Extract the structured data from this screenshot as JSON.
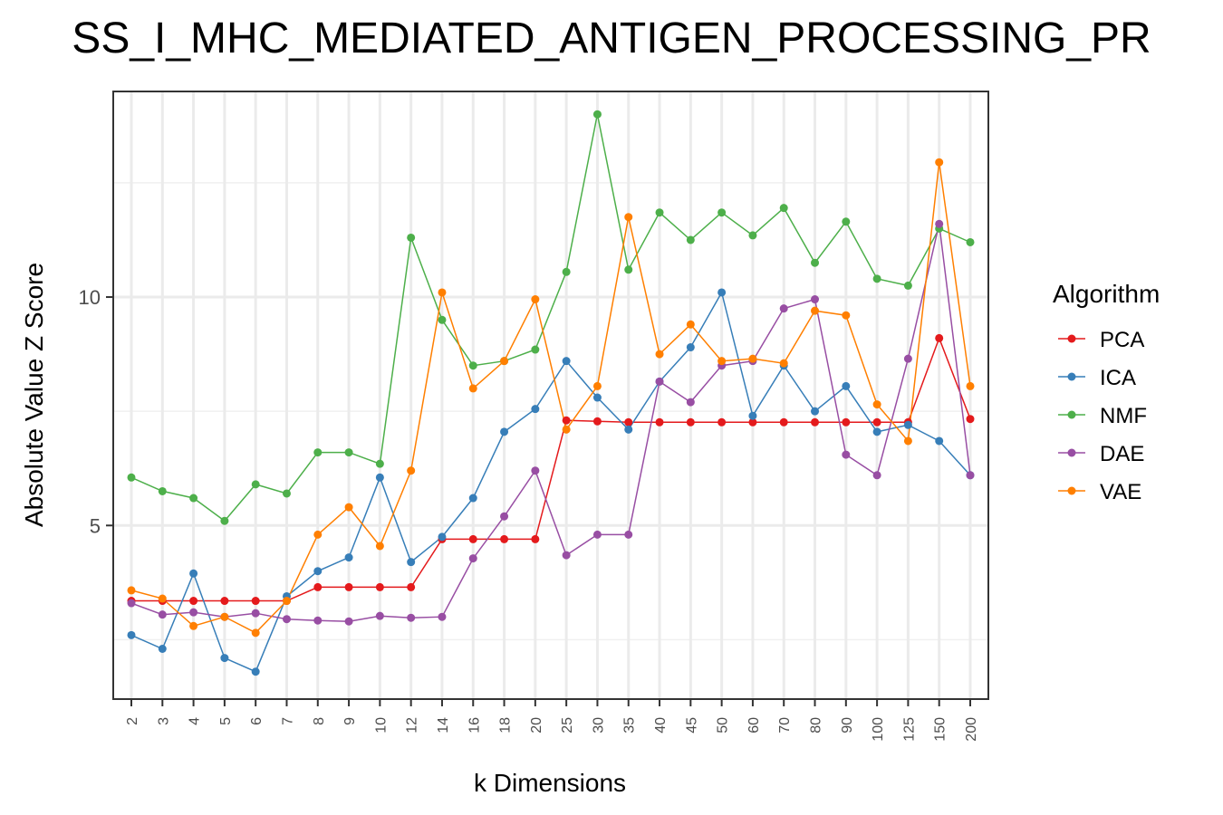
{
  "chart_data": {
    "type": "line",
    "title": "SS_I_MHC_MEDIATED_ANTIGEN_PROCESSING_PR",
    "xlabel": "k Dimensions",
    "ylabel": "Absolute Value Z Score",
    "categories": [
      "2",
      "3",
      "4",
      "5",
      "6",
      "7",
      "8",
      "9",
      "10",
      "12",
      "14",
      "16",
      "18",
      "20",
      "25",
      "30",
      "35",
      "40",
      "45",
      "50",
      "60",
      "70",
      "80",
      "90",
      "100",
      "125",
      "150",
      "200"
    ],
    "ylim": [
      1.2,
      14.5
    ],
    "yticks": [
      5,
      10
    ],
    "yticks_labels": [
      "5",
      "10"
    ],
    "grid": true,
    "legend": {
      "title": "Algorithm",
      "position": "right"
    },
    "series": [
      {
        "name": "PCA",
        "color": "#e41a1c",
        "values": [
          3.35,
          3.35,
          3.35,
          3.35,
          3.35,
          3.35,
          3.65,
          3.65,
          3.65,
          3.65,
          4.7,
          4.7,
          4.7,
          4.7,
          7.3,
          7.28,
          7.26,
          7.26,
          7.26,
          7.26,
          7.26,
          7.26,
          7.26,
          7.26,
          7.26,
          7.26,
          9.1,
          7.33
        ]
      },
      {
        "name": "ICA",
        "color": "#377eb8",
        "values": [
          2.6,
          2.3,
          3.95,
          2.1,
          1.8,
          3.45,
          4.0,
          4.3,
          6.05,
          4.2,
          4.75,
          5.6,
          7.05,
          7.55,
          8.6,
          7.8,
          7.1,
          8.15,
          8.9,
          10.1,
          7.4,
          8.5,
          7.5,
          8.05,
          7.05,
          7.2,
          6.85,
          6.1
        ]
      },
      {
        "name": "NMF",
        "color": "#4daf4a",
        "values": [
          6.05,
          5.75,
          5.6,
          5.1,
          5.9,
          5.7,
          6.6,
          6.6,
          6.35,
          11.3,
          9.5,
          8.5,
          8.6,
          8.85,
          10.55,
          14.0,
          10.6,
          11.85,
          11.25,
          11.85,
          11.35,
          11.95,
          10.75,
          11.65,
          10.4,
          10.25,
          11.5,
          11.2
        ]
      },
      {
        "name": "DAE",
        "color": "#984ea3",
        "values": [
          3.3,
          3.05,
          3.1,
          3.0,
          3.08,
          2.95,
          2.92,
          2.9,
          3.02,
          2.98,
          3.0,
          4.28,
          5.2,
          6.2,
          4.35,
          4.8,
          4.8,
          8.15,
          7.7,
          8.5,
          8.6,
          9.75,
          9.95,
          6.55,
          6.1,
          8.65,
          11.6,
          6.1
        ]
      },
      {
        "name": "VAE",
        "color": "#ff7f00",
        "values": [
          3.58,
          3.4,
          2.8,
          3.0,
          2.65,
          3.35,
          4.8,
          5.4,
          4.55,
          6.2,
          10.1,
          8.0,
          8.6,
          9.95,
          7.1,
          8.05,
          11.75,
          8.75,
          9.4,
          8.6,
          8.65,
          8.55,
          9.7,
          9.6,
          7.65,
          6.85,
          12.95,
          8.05
        ]
      }
    ]
  }
}
